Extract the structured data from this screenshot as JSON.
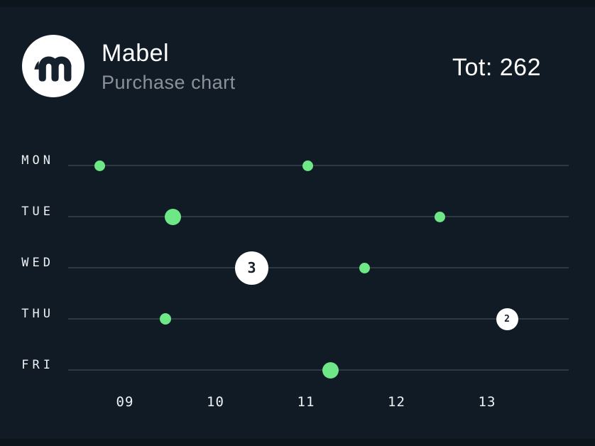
{
  "header": {
    "title": "Mabel",
    "subtitle": "Purchase chart",
    "total_label": "Tot: 262",
    "logo_glyph": "m"
  },
  "colors": {
    "background": "#111b26",
    "edge_strip": "#0c141c",
    "row_line": "#2e3943",
    "dot_green": "#6ee787",
    "cluster_bg": "#ffffff",
    "cluster_text": "#16212c",
    "text_primary": "#ffffff",
    "text_secondary": "#8a9199"
  },
  "chart_data": {
    "type": "scatter",
    "title": "Purchase chart",
    "total": 262,
    "x_axis": {
      "ticks": [
        "09",
        "10",
        "11",
        "12",
        "13"
      ],
      "unit": "hour"
    },
    "y_axis": {
      "categories": [
        "MON",
        "TUE",
        "WED",
        "THU",
        "FRI"
      ]
    },
    "legend": "none",
    "grid": "horizontal-row-lines",
    "points": [
      {
        "day": "MON",
        "hour": 8.72,
        "type": "dot",
        "diameter": 15
      },
      {
        "day": "MON",
        "hour": 11.02,
        "type": "dot",
        "diameter": 15
      },
      {
        "day": "TUE",
        "hour": 9.53,
        "type": "dot",
        "diameter": 23
      },
      {
        "day": "TUE",
        "hour": 12.48,
        "type": "dot",
        "diameter": 15
      },
      {
        "day": "WED",
        "hour": 10.4,
        "type": "cluster",
        "diameter": 47,
        "count": "3"
      },
      {
        "day": "WED",
        "hour": 11.65,
        "type": "dot",
        "diameter": 15
      },
      {
        "day": "THU",
        "hour": 9.45,
        "type": "dot",
        "diameter": 16
      },
      {
        "day": "THU",
        "hour": 13.22,
        "type": "cluster",
        "diameter": 31,
        "count": "2"
      },
      {
        "day": "FRI",
        "hour": 11.27,
        "type": "dot",
        "diameter": 23
      }
    ]
  }
}
